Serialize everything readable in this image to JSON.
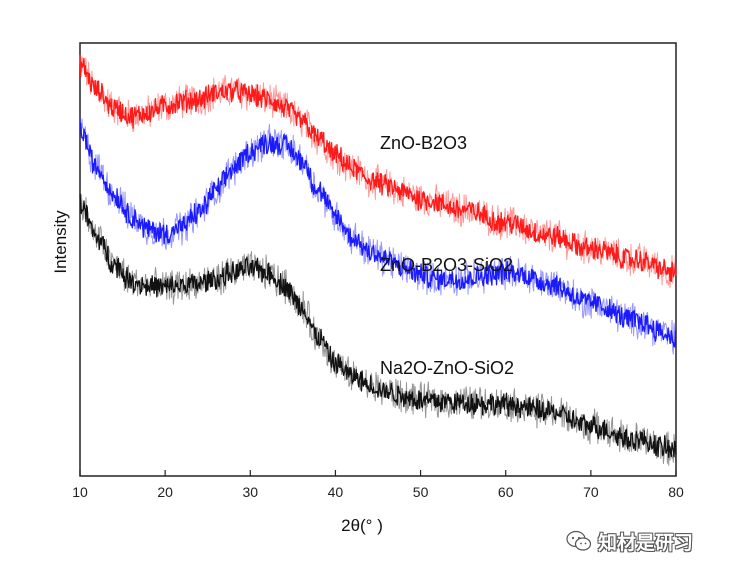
{
  "chart_data": {
    "type": "line",
    "title": "",
    "xlabel": "2θ(° )",
    "ylabel": "Intensity",
    "xlim": [
      10,
      80
    ],
    "ylim": [
      0,
      1
    ],
    "xticks": [
      10,
      20,
      30,
      40,
      50,
      60,
      70,
      80
    ],
    "yticks_shown": false,
    "grid": false,
    "legend": "inline labels right of curves",
    "series": [
      {
        "name": "ZnO-B2O3",
        "color": "#ff1a1a",
        "x": [
          10,
          12,
          14,
          16,
          18,
          20,
          22,
          24,
          26,
          28,
          30,
          32,
          34,
          36,
          38,
          40,
          42,
          44,
          46,
          48,
          50,
          55,
          60,
          65,
          70,
          75,
          80
        ],
        "y": [
          0.95,
          0.89,
          0.85,
          0.83,
          0.84,
          0.855,
          0.865,
          0.87,
          0.885,
          0.89,
          0.88,
          0.87,
          0.85,
          0.82,
          0.78,
          0.74,
          0.71,
          0.685,
          0.67,
          0.655,
          0.64,
          0.615,
          0.585,
          0.555,
          0.525,
          0.5,
          0.47
        ]
      },
      {
        "name": "ZnO-B2O3-SiO2",
        "color": "#1a1aff",
        "x": [
          10,
          12,
          14,
          16,
          18,
          20,
          22,
          24,
          26,
          28,
          30,
          32,
          34,
          36,
          38,
          40,
          42,
          44,
          46,
          48,
          50,
          52,
          55,
          58,
          60,
          62,
          65,
          70,
          75,
          80
        ],
        "y": [
          0.8,
          0.71,
          0.65,
          0.6,
          0.57,
          0.56,
          0.575,
          0.61,
          0.66,
          0.71,
          0.75,
          0.77,
          0.765,
          0.73,
          0.66,
          0.6,
          0.55,
          0.52,
          0.5,
          0.48,
          0.465,
          0.455,
          0.455,
          0.465,
          0.47,
          0.465,
          0.445,
          0.4,
          0.36,
          0.32
        ]
      },
      {
        "name": "Na2O-ZnO-SiO2",
        "color": "#111111",
        "x": [
          10,
          12,
          14,
          16,
          18,
          20,
          22,
          24,
          26,
          28,
          30,
          32,
          34,
          36,
          38,
          40,
          42,
          44,
          46,
          48,
          50,
          55,
          60,
          65,
          70,
          75,
          80
        ],
        "y": [
          0.63,
          0.55,
          0.49,
          0.45,
          0.44,
          0.435,
          0.44,
          0.445,
          0.455,
          0.47,
          0.48,
          0.47,
          0.44,
          0.39,
          0.32,
          0.26,
          0.23,
          0.21,
          0.195,
          0.185,
          0.175,
          0.17,
          0.165,
          0.15,
          0.115,
          0.085,
          0.06
        ]
      }
    ]
  },
  "watermark": {
    "text": "知材是研习",
    "icon": "wechat-icon"
  }
}
